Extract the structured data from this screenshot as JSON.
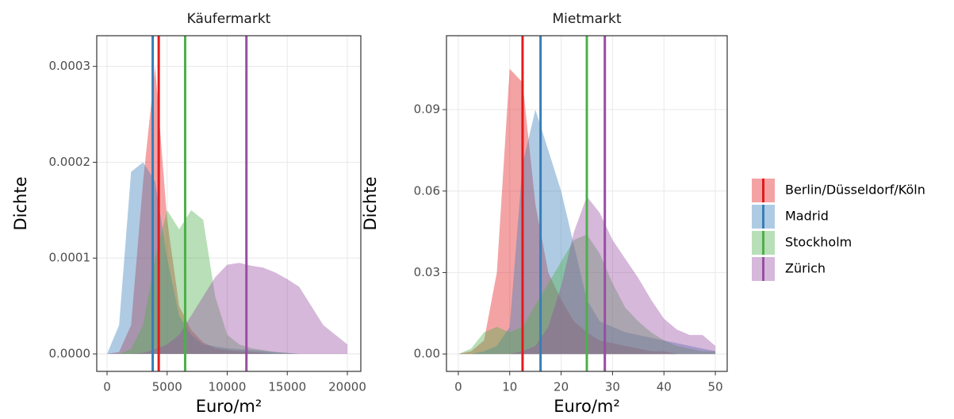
{
  "legend": {
    "items": [
      {
        "name": "Berlin/Düsseldorf/Köln",
        "color": "#e41a1c"
      },
      {
        "name": "Madrid",
        "color": "#377eb8"
      },
      {
        "name": "Stockholm",
        "color": "#4daf4a"
      },
      {
        "name": "Zürich",
        "color": "#984ea3"
      }
    ]
  },
  "chart_data": [
    {
      "type": "density",
      "title": "Käufermarkt",
      "x_label": "Euro/m²",
      "y_label": "Dichte",
      "xlim": [
        -858,
        21122
      ],
      "ylim": [
        -1.82e-05,
        0.000332
      ],
      "xticks": [
        0,
        5000,
        10000,
        15000,
        20000
      ],
      "yticks": [
        {
          "value": 0,
          "label": "0.0000"
        },
        {
          "value": 0.0001,
          "label": "0.0001"
        },
        {
          "value": 0.0002,
          "label": "0.0002"
        },
        {
          "value": 0.0003,
          "label": "0.0003"
        }
      ],
      "grid": true,
      "x": [
        0,
        1000,
        2000,
        3000,
        4000,
        5000,
        6000,
        7000,
        8000,
        9000,
        10000,
        11000,
        12000,
        13000,
        14000,
        15000,
        16000,
        17000,
        18000,
        19000,
        20000
      ],
      "series": [
        {
          "values": [
            0,
            2e-06,
            3e-05,
            0.00018,
            0.0003,
            0.00014,
            5e-05,
            2.5e-05,
            1.2e-05,
            6e-06,
            4e-06,
            3e-06,
            2e-06,
            1e-06,
            0,
            0,
            0,
            0,
            0,
            0,
            0
          ],
          "mean": 4300
        },
        {
          "values": [
            0,
            3e-05,
            0.00019,
            0.0002,
            0.00018,
            0.0001,
            4e-05,
            2e-05,
            1e-05,
            8e-06,
            6e-06,
            5e-06,
            4e-06,
            3e-06,
            2e-06,
            1e-06,
            0,
            0,
            0,
            0,
            0
          ],
          "mean": 3800
        },
        {
          "values": [
            0,
            0,
            5e-06,
            3e-05,
            0.0001,
            0.00015,
            0.00013,
            0.00015,
            0.00014,
            6e-05,
            2e-05,
            1e-05,
            6e-06,
            4e-06,
            2e-06,
            1e-06,
            0,
            0,
            0,
            0,
            0
          ],
          "mean": 6500
        },
        {
          "values": [
            0,
            0,
            0,
            1e-06,
            5e-06,
            1e-05,
            2e-05,
            4e-05,
            6e-05,
            8e-05,
            9.3e-05,
            9.5e-05,
            9.2e-05,
            9e-05,
            8.5e-05,
            7.8e-05,
            7e-05,
            5e-05,
            3e-05,
            2e-05,
            1e-05
          ],
          "mean": 11600
        }
      ]
    },
    {
      "type": "density",
      "title": "Mietmarkt",
      "x_label": "Euro/m²",
      "y_label": "Dichte",
      "xlim": [
        -2.3,
        52.3
      ],
      "ylim": [
        -0.0064,
        0.1172
      ],
      "xticks": [
        0,
        10,
        20,
        30,
        40,
        50
      ],
      "yticks": [
        {
          "value": 0,
          "label": "0.00"
        },
        {
          "value": 0.03,
          "label": "0.03"
        },
        {
          "value": 0.06,
          "label": "0.06"
        },
        {
          "value": 0.09,
          "label": "0.09"
        }
      ],
      "grid": true,
      "x": [
        0,
        2.5,
        5,
        7.5,
        10,
        12.5,
        15,
        17.5,
        20,
        22.5,
        25,
        27.5,
        30,
        32.5,
        35,
        37.5,
        40,
        42.5,
        45,
        47.5,
        50
      ],
      "series": [
        {
          "values": [
            0,
            0.001,
            0.005,
            0.03,
            0.105,
            0.1,
            0.055,
            0.03,
            0.02,
            0.012,
            0.008,
            0.005,
            0.004,
            0.003,
            0.002,
            0.001,
            0.001,
            0,
            0,
            0,
            0
          ],
          "mean": 12.5
        },
        {
          "values": [
            0,
            0,
            0.001,
            0.003,
            0.01,
            0.07,
            0.09,
            0.075,
            0.06,
            0.04,
            0.02,
            0.012,
            0.01,
            0.008,
            0.007,
            0.006,
            0.005,
            0.004,
            0.003,
            0.002,
            0.001
          ],
          "mean": 16
        },
        {
          "values": [
            0,
            0.002,
            0.008,
            0.01,
            0.008,
            0.01,
            0.018,
            0.026,
            0.034,
            0.042,
            0.044,
            0.037,
            0.026,
            0.017,
            0.012,
            0.008,
            0.005,
            0.003,
            0.002,
            0.001,
            0.001
          ],
          "mean": 25
        },
        {
          "values": [
            0,
            0,
            0,
            0,
            0,
            0.001,
            0.003,
            0.01,
            0.025,
            0.045,
            0.058,
            0.052,
            0.042,
            0.035,
            0.028,
            0.02,
            0.013,
            0.009,
            0.007,
            0.007,
            0.003
          ],
          "mean": 28.5
        }
      ]
    }
  ]
}
